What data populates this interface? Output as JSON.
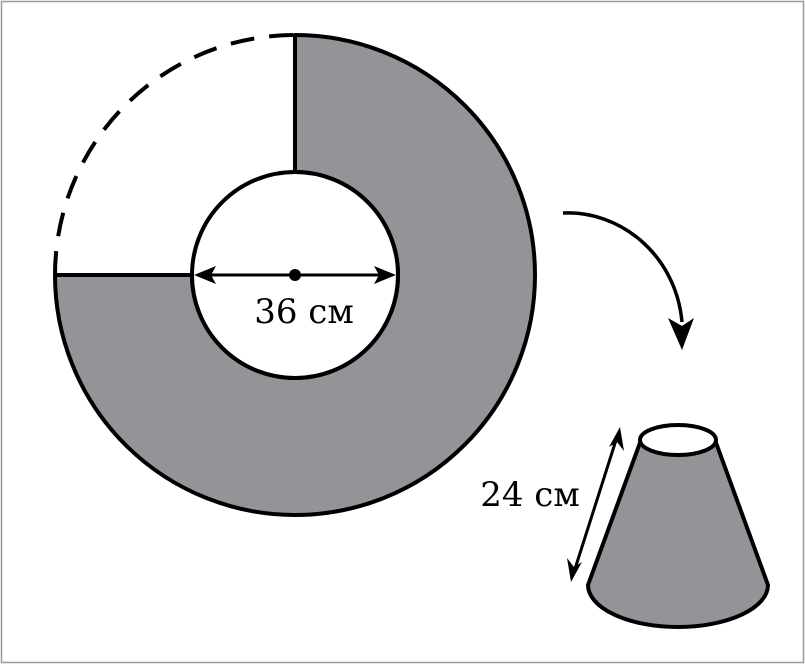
{
  "labels": {
    "inner_diameter": "36 см",
    "slant_height": "24 см"
  },
  "colors": {
    "fill": "#939498",
    "stroke": "#000000",
    "background": "#ffffff",
    "frame": "#999999"
  }
}
